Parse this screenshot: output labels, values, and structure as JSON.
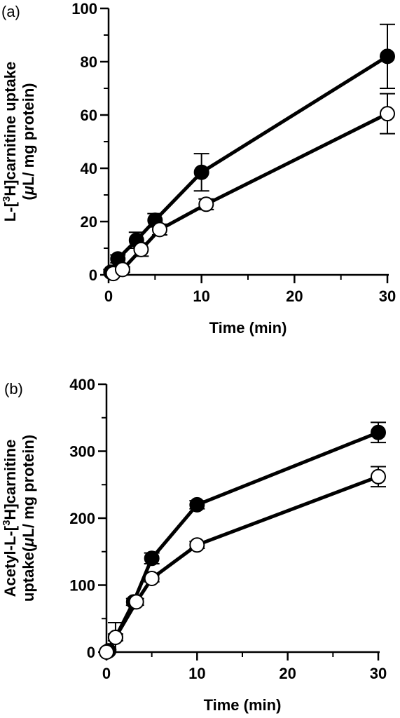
{
  "chart_data": [
    {
      "panel_label": "(a)",
      "type": "line",
      "xlabel": "Time (min)",
      "ylabel_line1_pre": "L-[",
      "ylabel_line1_sup": "3",
      "ylabel_line1_post": "H]carnitine uptake",
      "ylabel_line2_pre": "(",
      "ylabel_line2_mu": "μ",
      "ylabel_line2_post": "L/ mg protein)",
      "xlim": [
        0,
        30
      ],
      "ylim": [
        0,
        100
      ],
      "xticks": [
        0,
        10,
        20,
        30
      ],
      "xticks_minor": [
        5,
        15,
        25
      ],
      "yticks": [
        0,
        20,
        40,
        60,
        80,
        100
      ],
      "yticks_minor": [
        10,
        30,
        50,
        70,
        90
      ],
      "series": [
        {
          "marker": "filled-circle",
          "x": [
            0.25,
            1,
            3,
            5,
            10,
            30
          ],
          "y": [
            1,
            6,
            13,
            20.5,
            38.5,
            82
          ],
          "err": [
            1,
            1.5,
            3,
            2.5,
            7,
            12
          ]
        },
        {
          "marker": "open-circle",
          "x": [
            0.5,
            1.5,
            3.5,
            5.5,
            10.5,
            30
          ],
          "y": [
            0.5,
            2,
            9.5,
            17,
            26.5,
            60.5
          ],
          "err": [
            0.5,
            1,
            2.5,
            2,
            2,
            7.5
          ]
        }
      ]
    },
    {
      "panel_label": "(b)",
      "type": "line",
      "xlabel": "Time (min)",
      "ylabel_line1_pre": "Acetyl-L-[",
      "ylabel_line1_sup": "3",
      "ylabel_line1_post": "H]carnitine",
      "ylabel_line2_pre": "uptake(",
      "ylabel_line2_mu": "μ",
      "ylabel_line2_post": "L/ mg protein)",
      "xlim": [
        0,
        30
      ],
      "ylim": [
        0,
        400
      ],
      "xticks": [
        0,
        10,
        20,
        30
      ],
      "xticks_minor": [
        5,
        15,
        25
      ],
      "yticks": [
        0,
        100,
        200,
        300,
        400
      ],
      "yticks_minor": [
        50,
        150,
        250,
        350
      ],
      "series": [
        {
          "marker": "filled-circle",
          "x": [
            0.25,
            1,
            3,
            5,
            10,
            30
          ],
          "y": [
            2,
            22,
            75,
            140,
            220,
            328
          ],
          "err": [
            2,
            22,
            5,
            8,
            6,
            15
          ]
        },
        {
          "marker": "open-circle",
          "x": [
            0,
            1,
            3.3,
            5,
            10,
            30
          ],
          "y": [
            0,
            22,
            75,
            110,
            160,
            262
          ],
          "err": [
            0,
            5,
            5,
            5,
            5,
            15
          ]
        }
      ]
    }
  ]
}
